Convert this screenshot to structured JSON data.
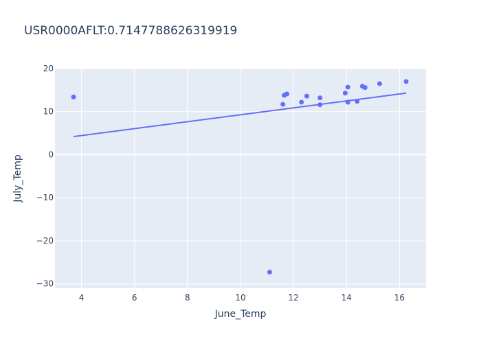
{
  "chart_data": {
    "type": "scatter",
    "title": "USR0000AFLT:0.7147788626319919",
    "xlabel": "June_Temp",
    "ylabel": "July_Temp",
    "xlim": [
      3.0,
      17.0
    ],
    "ylim": [
      -31,
      20
    ],
    "x_ticks": [
      4,
      6,
      8,
      10,
      12,
      14,
      16
    ],
    "y_ticks": [
      -30,
      -20,
      -10,
      0,
      10,
      20
    ],
    "x_tick_labels": [
      "4",
      "6",
      "8",
      "10",
      "12",
      "14",
      "16"
    ],
    "y_tick_labels": [
      "−30",
      "−20",
      "−10",
      "0",
      "10",
      "20"
    ],
    "grid": true,
    "colors": {
      "plot_bg": "#e5ecf6",
      "grid": "#ffffff",
      "marker": "#636efa",
      "line": "#636efa",
      "text": "#2a3f5f"
    },
    "points": [
      {
        "x": 3.7,
        "y": 13.4
      },
      {
        "x": 11.1,
        "y": -27.3
      },
      {
        "x": 11.6,
        "y": 11.7
      },
      {
        "x": 11.65,
        "y": 13.8
      },
      {
        "x": 11.75,
        "y": 14.1
      },
      {
        "x": 12.3,
        "y": 12.2
      },
      {
        "x": 12.5,
        "y": 13.6
      },
      {
        "x": 13.0,
        "y": 13.2
      },
      {
        "x": 13.0,
        "y": 11.6
      },
      {
        "x": 13.95,
        "y": 14.3
      },
      {
        "x": 14.05,
        "y": 15.7
      },
      {
        "x": 14.05,
        "y": 12.2
      },
      {
        "x": 14.4,
        "y": 12.4
      },
      {
        "x": 14.6,
        "y": 15.9
      },
      {
        "x": 14.7,
        "y": 15.6
      },
      {
        "x": 15.25,
        "y": 16.5
      },
      {
        "x": 16.25,
        "y": 17.0
      }
    ],
    "trendline": [
      {
        "x": 3.7,
        "y": 4.2
      },
      {
        "x": 16.25,
        "y": 14.3
      }
    ]
  }
}
